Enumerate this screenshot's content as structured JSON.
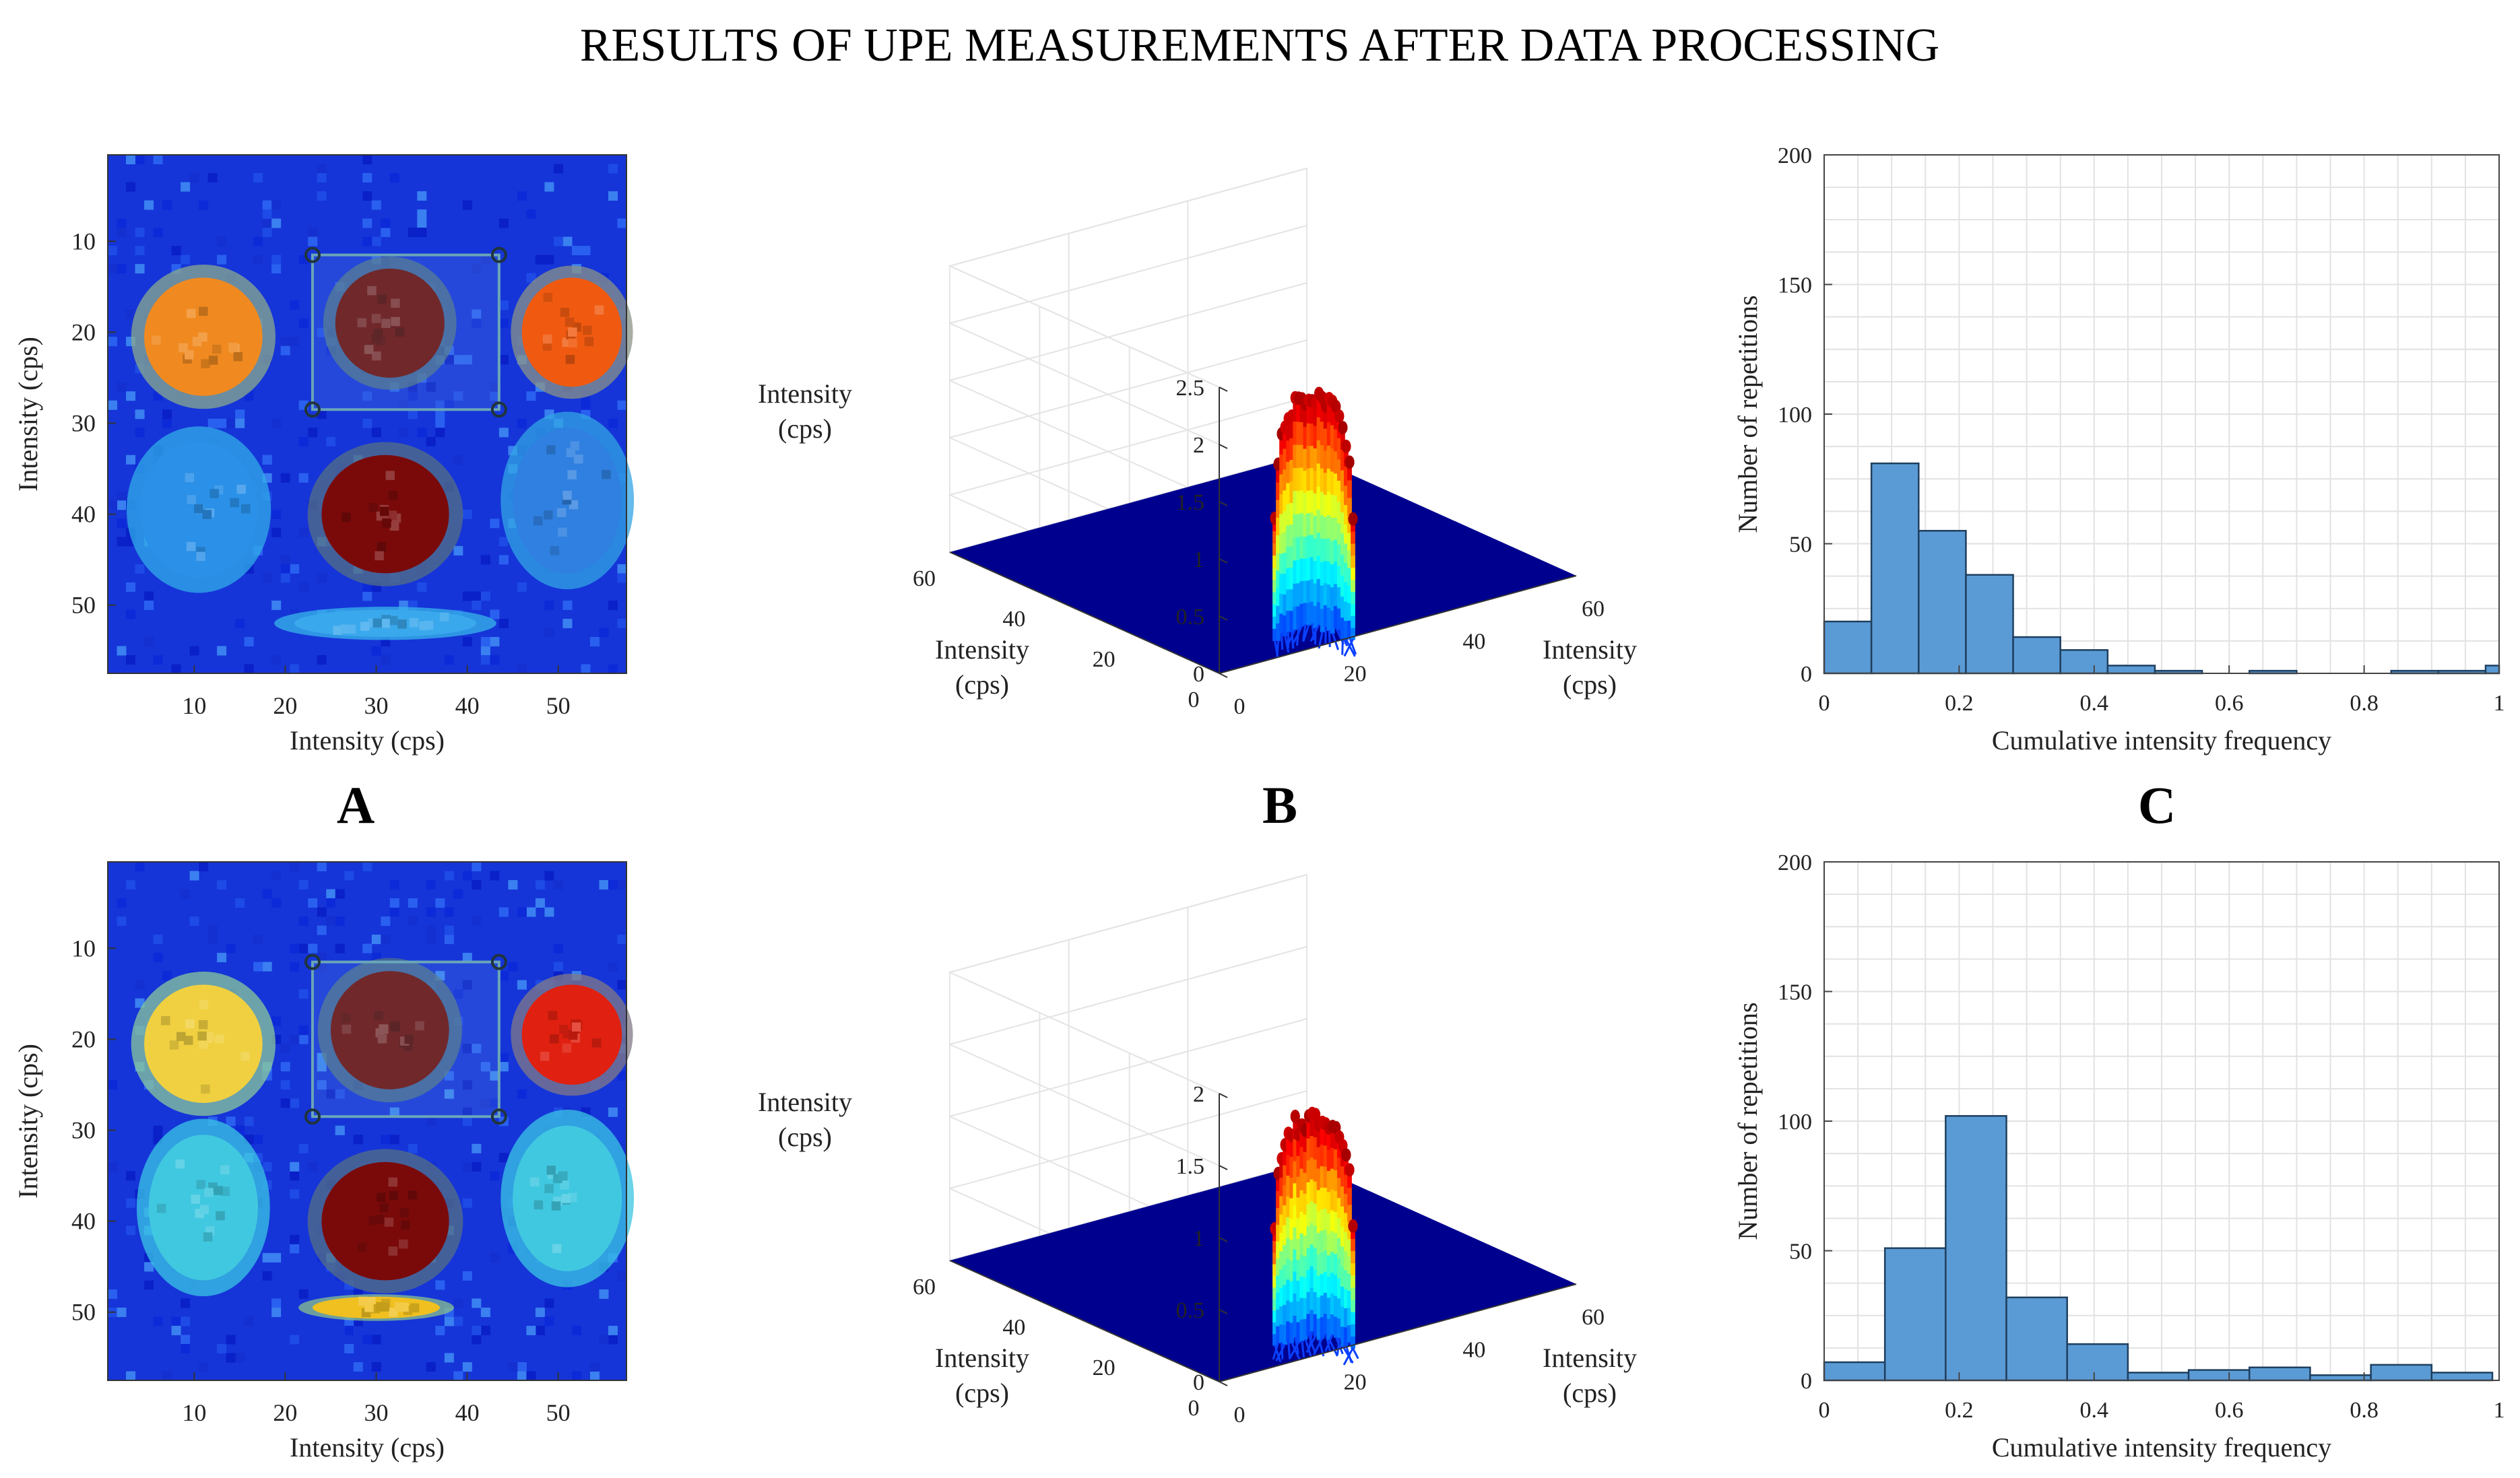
{
  "title": "RESULTS OF UPE MEASUREMENTS AFTER DATA PROCESSING",
  "panel_letters": [
    "A",
    "B",
    "C"
  ],
  "colors": {
    "bar_fill": "#5b9bd5",
    "bar_edge": "#1f3f5f",
    "surface_floor": "#00008f",
    "heatmap_bg": "#1535d8",
    "hot_dark": "#6a1111",
    "hot_orange": "#f06010",
    "warm_yellow": "#d9f05a",
    "cyan": "#35c2e8",
    "grid": "#e2e2e2",
    "axis": "#333333"
  },
  "chart_data": [
    {
      "id": "A1",
      "type": "heatmap",
      "xlabel": "Intensity  (cps)",
      "ylabel": "Intensity  (cps)",
      "xlim": [
        0.5,
        57.5
      ],
      "ylim": [
        0.5,
        57.5
      ],
      "xticks": [
        10,
        20,
        30,
        40,
        50
      ],
      "yticks": [
        10,
        20,
        30,
        40,
        50
      ],
      "y_reversed": true,
      "spots": [
        {
          "cx": 11,
          "cy": 20.5,
          "rx": 6.5,
          "ry": 6.5,
          "color": "#f08a20"
        },
        {
          "cx": 31.5,
          "cy": 19,
          "rx": 6,
          "ry": 6,
          "color": "#6a1111"
        },
        {
          "cx": 51.5,
          "cy": 20,
          "rx": 5.5,
          "ry": 6,
          "color": "#f05a10"
        },
        {
          "cx": 31,
          "cy": 40,
          "rx": 7,
          "ry": 6.5,
          "color": "#7a0a0a"
        },
        {
          "cx": 10.5,
          "cy": 39.5,
          "rx": 6.5,
          "ry": 7.5,
          "color": "#2a90e8"
        },
        {
          "cx": 51,
          "cy": 38.5,
          "rx": 6,
          "ry": 8,
          "color": "#2f80e0"
        },
        {
          "cx": 31,
          "cy": 52,
          "rx": 10,
          "ry": 1.5,
          "color": "#3aa8ec"
        }
      ],
      "roi_corners": [
        [
          23,
          11.5
        ],
        [
          43.5,
          11.5
        ],
        [
          43.5,
          28.5
        ],
        [
          23,
          28.5
        ]
      ]
    },
    {
      "id": "B1",
      "type": "surface3d",
      "zlabel": [
        "Intensity",
        "(cps)"
      ],
      "xlabel": [
        "Intensity",
        "(cps)"
      ],
      "ylabel": [
        "Intensity",
        "(cps)"
      ],
      "zlim": [
        0,
        2.5
      ],
      "zticks": [
        0,
        0.5,
        1,
        1.5,
        2,
        2.5
      ],
      "xlim": [
        0,
        60
      ],
      "xticks": [
        20,
        40,
        60
      ],
      "ylim": [
        0,
        60
      ],
      "yticks": [
        0,
        20,
        40,
        60
      ],
      "peak": {
        "x": 31,
        "y": 20,
        "height": 2.05
      }
    },
    {
      "id": "C1",
      "type": "bar",
      "xlabel": "Cumulative intensity  frequency",
      "ylabel": "Number of repetitions",
      "xlim": [
        0,
        1
      ],
      "ylim": [
        0,
        200
      ],
      "xticks": [
        0,
        0.2,
        0.4,
        0.6,
        0.8,
        1
      ],
      "xtick_labels": [
        "0",
        "0.2",
        "0.4",
        "0.6",
        "0.8",
        "1"
      ],
      "yticks": [
        0,
        50,
        100,
        150,
        200
      ],
      "bin_width": 0.07,
      "bin_edges_start": [
        0,
        0.07,
        0.14,
        0.21,
        0.28,
        0.35,
        0.42,
        0.49,
        0.56,
        0.63,
        0.7,
        0.77,
        0.84,
        0.91,
        0.98
      ],
      "values": [
        20,
        81,
        55,
        38,
        14,
        9,
        3,
        1,
        0,
        1,
        0,
        0,
        1,
        1,
        3
      ]
    },
    {
      "id": "A2",
      "type": "heatmap",
      "xlabel": "Intensity  (cps)",
      "ylabel": "Intensity  (cps)",
      "xlim": [
        0.5,
        57.5
      ],
      "ylim": [
        0.5,
        57.5
      ],
      "xticks": [
        10,
        20,
        30,
        40,
        50
      ],
      "yticks": [
        10,
        20,
        30,
        40,
        50
      ],
      "y_reversed": true,
      "spots": [
        {
          "cx": 11,
          "cy": 20.5,
          "rx": 6.5,
          "ry": 6.5,
          "color": "#f0d040"
        },
        {
          "cx": 31.5,
          "cy": 19,
          "rx": 6.5,
          "ry": 6.5,
          "color": "#6a1111"
        },
        {
          "cx": 51.5,
          "cy": 19.5,
          "rx": 5.5,
          "ry": 5.5,
          "color": "#e02010"
        },
        {
          "cx": 31,
          "cy": 40,
          "rx": 7,
          "ry": 6.5,
          "color": "#7a0a0a"
        },
        {
          "cx": 11,
          "cy": 38.5,
          "rx": 6,
          "ry": 8,
          "color": "#40c8e0"
        },
        {
          "cx": 51,
          "cy": 37.5,
          "rx": 6,
          "ry": 8,
          "color": "#40c8e0"
        },
        {
          "cx": 30,
          "cy": 49.5,
          "rx": 7,
          "ry": 1.2,
          "color": "#f0c020"
        }
      ],
      "roi_corners": [
        [
          23,
          11.5
        ],
        [
          43.5,
          11.5
        ],
        [
          43.5,
          28.5
        ],
        [
          23,
          28.5
        ]
      ]
    },
    {
      "id": "B2",
      "type": "surface3d",
      "zlabel": [
        "Intensity",
        "(cps)"
      ],
      "xlabel": [
        "Intensity",
        "(cps)"
      ],
      "ylabel": [
        "Intensity",
        "(cps)"
      ],
      "zlim": [
        0,
        2
      ],
      "zticks": [
        0,
        0.5,
        1,
        1.5,
        2
      ],
      "xlim": [
        0,
        60
      ],
      "xticks": [
        20,
        40,
        60
      ],
      "ylim": [
        0,
        60
      ],
      "yticks": [
        0,
        20,
        40,
        60
      ],
      "peak": {
        "x": 31,
        "y": 20,
        "height": 1.55
      }
    },
    {
      "id": "C2",
      "type": "bar",
      "xlabel": "Cumulative intensity  frequency",
      "ylabel": "Number of repetitions",
      "xlim": [
        0,
        1
      ],
      "ylim": [
        0,
        200
      ],
      "xticks": [
        0,
        0.2,
        0.4,
        0.6,
        0.8,
        1
      ],
      "xtick_labels": [
        "0",
        "0.2",
        "0.4",
        "0.6",
        "0.8",
        "1"
      ],
      "yticks": [
        0,
        50,
        100,
        150,
        200
      ],
      "bin_width": 0.09,
      "bin_edges_start": [
        0,
        0.09,
        0.18,
        0.27,
        0.36,
        0.45,
        0.54,
        0.63,
        0.72,
        0.81,
        0.9
      ],
      "values": [
        7,
        51,
        102,
        32,
        14,
        3,
        4,
        5,
        2,
        6,
        3
      ]
    }
  ]
}
